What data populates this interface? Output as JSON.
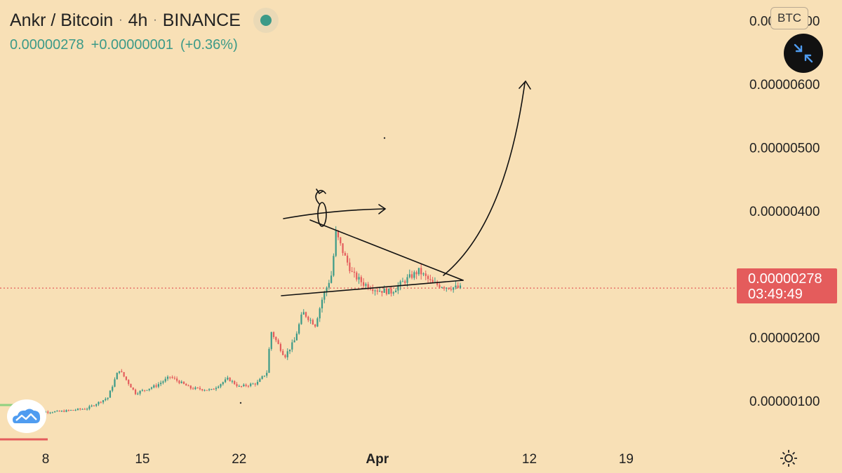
{
  "header": {
    "symbol": "Ankr / Bitcoin",
    "interval": "4h",
    "exchange": "BINANCE",
    "separator": "·",
    "status_color": "#3c9a88"
  },
  "quote": {
    "last": "0.00000278",
    "change": "+0.00000001",
    "change_pct": "(+0.36%)"
  },
  "controls": {
    "currency_label": "BTC",
    "shrink_icon": "compress-arrows-icon",
    "settings_icon": "gear-icon",
    "logo_icon": "cloud-logo-icon"
  },
  "price_tag": {
    "price": "0.00000278",
    "countdown": "03:49:49",
    "color": "#e45c5c"
  },
  "colors": {
    "background": "#f8e0b6",
    "up": "#3c9a88",
    "down": "#e45c5c",
    "drawing": "#111111"
  },
  "chart_data": {
    "type": "candlestick",
    "title": "",
    "xlabel": "",
    "ylabel": "",
    "y_unit": "BTC",
    "ylim": [
      2e-07,
      7e-07
    ],
    "y_ticks": [
      "0.00000100",
      "0.00000200",
      "0.00000300",
      "0.00000400",
      "0.00000500",
      "0.00000600",
      "0.00000700"
    ],
    "y_tick_values": [
      1e-06,
      2e-06,
      3e-06,
      4e-06,
      5e-06,
      6e-06,
      7e-06
    ],
    "x_ticks": [
      {
        "label": "8",
        "day": 8
      },
      {
        "label": "15",
        "day": 15
      },
      {
        "label": "22",
        "day": 22
      },
      {
        "label": "Apr",
        "day": 32,
        "bold": true
      },
      {
        "label": "12",
        "day": 43
      },
      {
        "label": "19",
        "day": 50
      }
    ],
    "last_price": 2.78e-06,
    "series_close_path": [
      {
        "day": 7.0,
        "value": 8.2e-07
      },
      {
        "day": 9.0,
        "value": 8.3e-07
      },
      {
        "day": 11.0,
        "value": 8.8e-07
      },
      {
        "day": 12.5,
        "value": 1.05e-06
      },
      {
        "day": 13.3,
        "value": 1.5e-06
      },
      {
        "day": 14.5,
        "value": 1.12e-06
      },
      {
        "day": 16.0,
        "value": 1.24e-06
      },
      {
        "day": 17.0,
        "value": 1.38e-06
      },
      {
        "day": 18.5,
        "value": 1.2e-06
      },
      {
        "day": 20.0,
        "value": 1.17e-06
      },
      {
        "day": 21.2,
        "value": 1.35e-06
      },
      {
        "day": 22.0,
        "value": 1.22e-06
      },
      {
        "day": 23.3,
        "value": 1.28e-06
      },
      {
        "day": 24.0,
        "value": 1.45e-06
      },
      {
        "day": 24.3,
        "value": 2.1e-06
      },
      {
        "day": 25.3,
        "value": 1.7e-06
      },
      {
        "day": 26.0,
        "value": 1.95e-06
      },
      {
        "day": 26.6,
        "value": 2.4e-06
      },
      {
        "day": 27.5,
        "value": 2.2e-06
      },
      {
        "day": 28.0,
        "value": 2.6e-06
      },
      {
        "day": 28.7,
        "value": 3e-06
      },
      {
        "day": 29.0,
        "value": 3.65e-06
      },
      {
        "day": 29.6,
        "value": 3.3e-06
      },
      {
        "day": 30.2,
        "value": 3e-06
      },
      {
        "day": 31.0,
        "value": 2.85e-06
      },
      {
        "day": 32.0,
        "value": 2.75e-06
      },
      {
        "day": 33.0,
        "value": 2.72e-06
      },
      {
        "day": 34.0,
        "value": 2.9e-06
      },
      {
        "day": 35.0,
        "value": 3.05e-06
      },
      {
        "day": 36.0,
        "value": 2.85e-06
      },
      {
        "day": 37.0,
        "value": 2.8e-06
      },
      {
        "day": 38.0,
        "value": 2.78e-06
      }
    ]
  }
}
